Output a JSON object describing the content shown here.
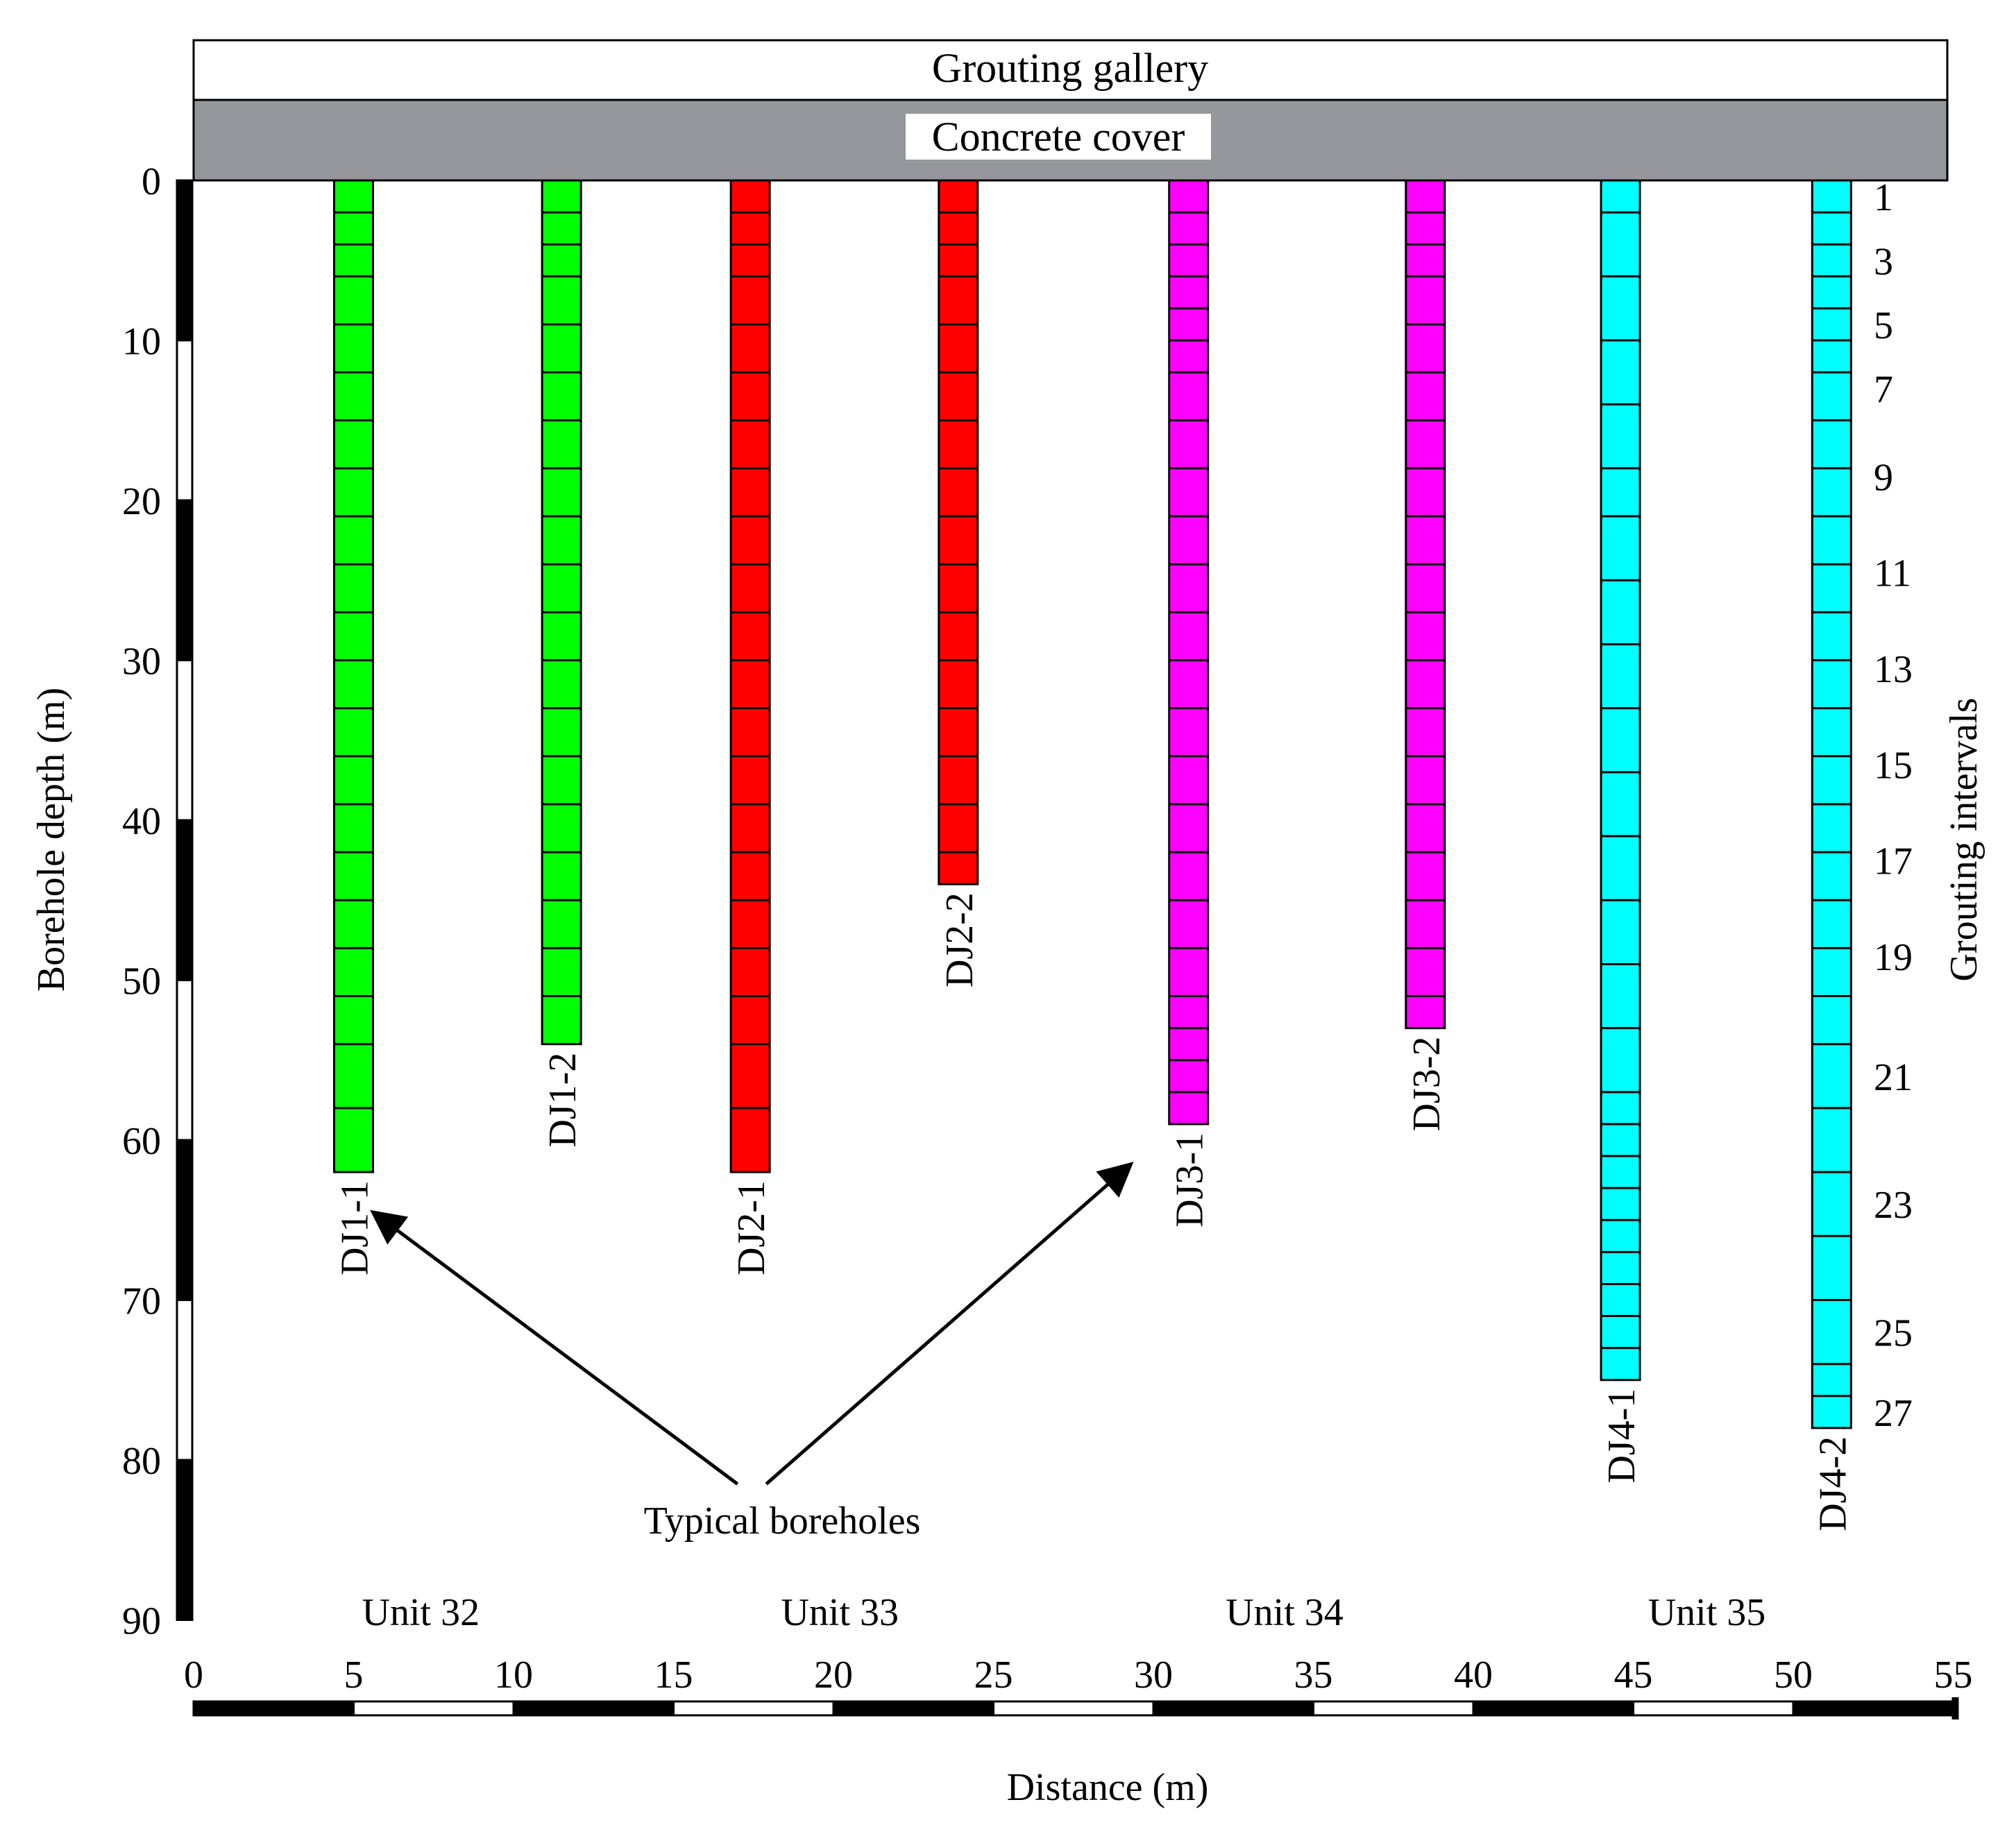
{
  "gallery_label": "Grouting gallery",
  "concrete_label": "Concrete cover",
  "y_axis_title": "Borehole depth (m)",
  "x_axis_title": "Distance (m)",
  "right_axis_title": "Grouting intervals",
  "annotation": "Typical boreholes",
  "colors": {
    "gallery_fill": "#ffffff",
    "concrete_fill": "#96979c",
    "label_bg": "#ffffff",
    "DJ1": "#00ff00",
    "DJ2": "#ff0000",
    "DJ3": "#ff00ff",
    "DJ4": "#00ffff",
    "scale_dark": "#000000",
    "scale_light": "#ffffff"
  },
  "chart_data": {
    "type": "diagram",
    "x_axis": {
      "min": 0,
      "max": 55,
      "step": 5,
      "ticks": [
        "0",
        "5",
        "10",
        "15",
        "20",
        "25",
        "30",
        "35",
        "40",
        "45",
        "50",
        "55"
      ]
    },
    "y_axis": {
      "min": 0,
      "max": 90,
      "step": 10,
      "ticks": [
        "0",
        "10",
        "20",
        "30",
        "40",
        "50",
        "60",
        "70",
        "80",
        "90"
      ]
    },
    "units": [
      {
        "label": "Unit  32",
        "center": 7.1
      },
      {
        "label": "Unit  33",
        "center": 20.2
      },
      {
        "label": "Unit  34",
        "center": 34.1
      },
      {
        "label": "Unit  35",
        "center": 47.3
      }
    ],
    "boreholes": [
      {
        "name": "DJ1-1",
        "group": "DJ1",
        "x": 5.0,
        "depth": 62,
        "segments": [
          0,
          2,
          4,
          6,
          9,
          12,
          15,
          18,
          21,
          24,
          27,
          30,
          33,
          36,
          39,
          42,
          45,
          48,
          51,
          54,
          58,
          62
        ]
      },
      {
        "name": "DJ1-2",
        "group": "DJ1",
        "x": 11.5,
        "depth": 54,
        "segments": [
          0,
          2,
          4,
          6,
          9,
          12,
          15,
          18,
          21,
          24,
          27,
          30,
          33,
          36,
          39,
          42,
          45,
          48,
          51,
          54
        ]
      },
      {
        "name": "DJ2-1",
        "group": "DJ2",
        "x": 17.4,
        "depth": 62,
        "segments": [
          0,
          2,
          4,
          6,
          9,
          12,
          15,
          18,
          21,
          24,
          27,
          30,
          33,
          36,
          39,
          42,
          45,
          48,
          51,
          54,
          58,
          62
        ]
      },
      {
        "name": "DJ2-2",
        "group": "DJ2",
        "x": 23.9,
        "depth": 44,
        "segments": [
          0,
          2,
          4,
          6,
          9,
          12,
          15,
          18,
          21,
          24,
          27,
          30,
          33,
          36,
          39,
          42,
          44
        ]
      },
      {
        "name": "DJ3-1",
        "group": "DJ3",
        "x": 31.1,
        "depth": 59,
        "segments": [
          0,
          2,
          4,
          6,
          8,
          10,
          12,
          15,
          18,
          21,
          24,
          27,
          30,
          33,
          36,
          39,
          42,
          45,
          48,
          51,
          53,
          55,
          57,
          59
        ]
      },
      {
        "name": "DJ3-2",
        "group": "DJ3",
        "x": 38.5,
        "depth": 53,
        "segments": [
          0,
          2,
          4,
          6,
          9,
          12,
          15,
          18,
          21,
          24,
          27,
          30,
          33,
          36,
          39,
          42,
          45,
          48,
          51,
          53
        ]
      },
      {
        "name": "DJ4-1",
        "group": "DJ4",
        "x": 44.6,
        "depth": 75,
        "segments": [
          0,
          2,
          6,
          10,
          14,
          18,
          21,
          25,
          29,
          33,
          37,
          41,
          45,
          49,
          53,
          57,
          59,
          61,
          63,
          65,
          67,
          69,
          71,
          73,
          75
        ]
      },
      {
        "name": "DJ4-2",
        "group": "DJ4",
        "x": 51.2,
        "depth": 78,
        "segments": [
          0,
          2,
          4,
          6,
          8,
          10,
          12,
          15,
          18,
          21,
          24,
          27,
          30,
          33,
          36,
          39,
          42,
          45,
          48,
          51,
          54,
          58,
          62,
          66,
          70,
          74,
          76,
          78
        ]
      }
    ],
    "interval_labels": [
      {
        "label": "1",
        "depth": 1
      },
      {
        "label": "3",
        "depth": 5
      },
      {
        "label": "5",
        "depth": 9
      },
      {
        "label": "7",
        "depth": 13
      },
      {
        "label": "9",
        "depth": 18.5
      },
      {
        "label": "11",
        "depth": 24.5
      },
      {
        "label": "13",
        "depth": 30.5
      },
      {
        "label": "15",
        "depth": 36.5
      },
      {
        "label": "17",
        "depth": 42.5
      },
      {
        "label": "19",
        "depth": 48.5
      },
      {
        "label": "21",
        "depth": 56
      },
      {
        "label": "23",
        "depth": 64
      },
      {
        "label": "25",
        "depth": 72
      },
      {
        "label": "27",
        "depth": 77
      }
    ],
    "arrows": [
      {
        "to": "DJ1-1",
        "from_x": 17.0,
        "from_depth": 81.5,
        "to_x": 5.6,
        "to_depth": 64.5
      },
      {
        "to": "DJ3-1",
        "from_x": 17.9,
        "from_depth": 81.5,
        "to_x": 29.3,
        "to_depth": 61.5
      }
    ]
  }
}
